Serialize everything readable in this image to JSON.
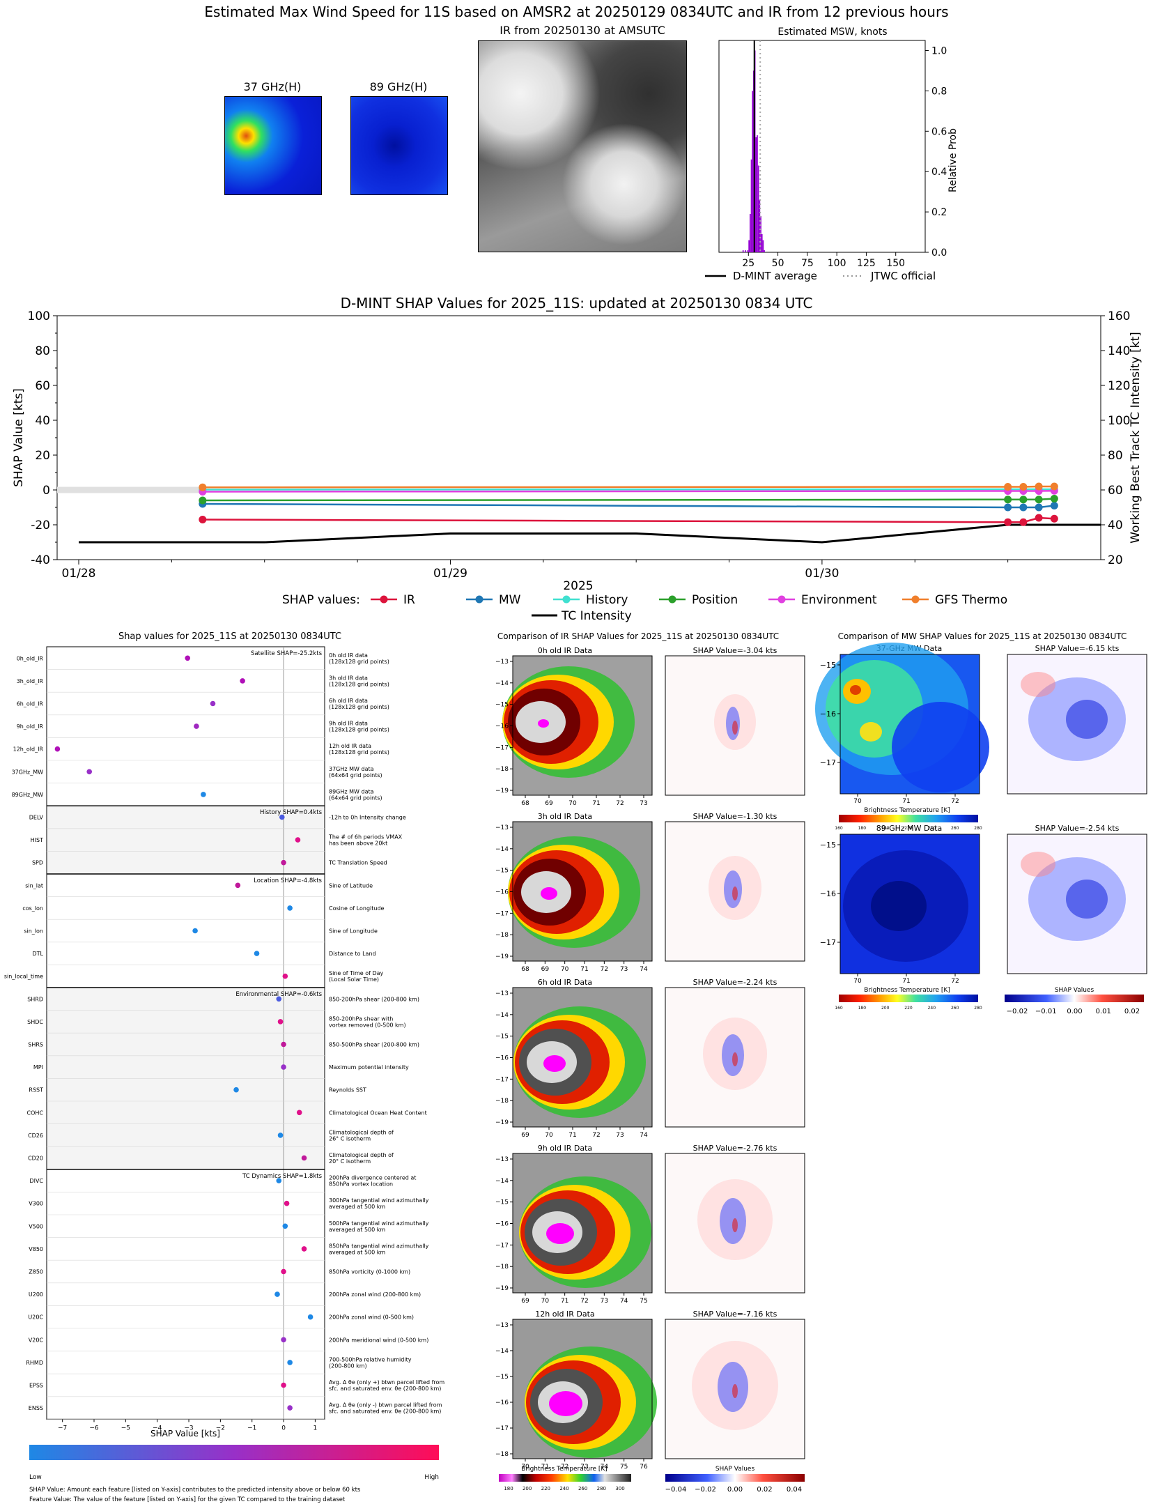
{
  "header": {
    "title": "Estimated Max Wind Speed for 11S based on AMSR2 at 20250129 0834UTC and IR from 12 previous hours",
    "mw37_title": "37 GHz(H)",
    "mw89_title": "89 GHz(H)",
    "ir_title": "IR from 20250130 at  AMSUTC",
    "hist_title": "Estimated MSW, knots",
    "hist_ylabel": "Relative Prob",
    "legend_dmint": "D-MINT average",
    "legend_jtwc": "JTWC official"
  },
  "timeseries": {
    "title": "D-MINT SHAP Values for 2025_11S: updated at 20250130 0834 UTC",
    "ylabel_left": "SHAP Value [kts]",
    "ylabel_right": "Working Best Track TC Intensity [kt]",
    "xlabel": "2025",
    "x_ticks": [
      "01/28",
      "01/29",
      "01/30"
    ],
    "legend_prefix": "SHAP values:",
    "legend_tc": "TC Intensity"
  },
  "shap_panel": {
    "title": "Shap values for 2025_11S at 20250130 0834UTC",
    "xlabel": "SHAP Value [kts]",
    "colorbar_low": "Low",
    "colorbar_high": "High",
    "footnote1": "SHAP Value: Amount each feature [listed on Y-axis] contributes to the predicted intensity above or below 60 kts",
    "footnote2": "Feature Value: The value of the feature [listed on Y-axis] for the given TC compared to the training dataset",
    "group_labels": [
      "Satellite SHAP=-25.2kts",
      "History SHAP=0.4kts",
      "Location SHAP=-4.8kts",
      "Environmental SHAP=-0.6kts",
      "TC Dynamics SHAP=1.8kts"
    ]
  },
  "ir_panel": {
    "title": "Comparison of IR SHAP Values for 2025_11S at 20250130 0834UTC",
    "rows": [
      {
        "label": "0h old IR Data",
        "shap": "SHAP Value=-3.04 kts",
        "xticks": [
          "68",
          "69",
          "70",
          "71",
          "72",
          "73"
        ],
        "yticks": [
          "-13",
          "-14",
          "-15",
          "-16",
          "-17",
          "-18",
          "-19"
        ]
      },
      {
        "label": "3h old IR Data",
        "shap": "SHAP Value=-1.30 kts",
        "xticks": [
          "68",
          "69",
          "70",
          "71",
          "72",
          "73",
          "74"
        ],
        "yticks": [
          "-13",
          "-14",
          "-15",
          "-16",
          "-17",
          "-18",
          "-19"
        ]
      },
      {
        "label": "6h old IR Data",
        "shap": "SHAP Value=-2.24 kts",
        "xticks": [
          "69",
          "70",
          "71",
          "72",
          "73",
          "74"
        ],
        "yticks": [
          "-13",
          "-14",
          "-15",
          "-16",
          "-17",
          "-18",
          "-19"
        ]
      },
      {
        "label": "9h old IR Data",
        "shap": "SHAP Value=-2.76 kts",
        "xticks": [
          "69",
          "70",
          "71",
          "72",
          "73",
          "74",
          "75"
        ],
        "yticks": [
          "-13",
          "-14",
          "-15",
          "-16",
          "-17",
          "-18",
          "-19"
        ]
      },
      {
        "label": "12h old IR Data",
        "shap": "SHAP Value=-7.16 kts",
        "xticks": [
          "70",
          "71",
          "72",
          "73",
          "74",
          "75",
          "76"
        ],
        "yticks": [
          "-13",
          "-14",
          "-15",
          "-16",
          "-17",
          "-18"
        ]
      }
    ],
    "cb_label": "Brightness Temperature [K]",
    "cb_ticks": [
      "180",
      "200",
      "220",
      "240",
      "260",
      "280",
      "300"
    ],
    "shap_cb_label": "SHAP Values",
    "shap_cb_ticks": [
      "−0.04",
      "−0.02",
      "0.00",
      "0.02",
      "0.04"
    ]
  },
  "mw_panel": {
    "title": "Comparison of MW SHAP Values for 2025_11S at 20250130 0834UTC",
    "rows": [
      {
        "label": "37-GHz MW Data",
        "shap": "SHAP Value=-6.15 kts"
      },
      {
        "label": "89-GHz MW Data",
        "shap": "SHAP Value=-2.54 kts"
      }
    ],
    "xticks": [
      "70",
      "71",
      "72"
    ],
    "yticks": [
      "-15",
      "-16",
      "-17"
    ],
    "cb_label": "Brightness Temperature [K]",
    "cb_ticks": [
      "160",
      "180",
      "200",
      "220",
      "240",
      "260",
      "280"
    ],
    "shap_cb_label": "SHAP Values",
    "shap_cb_ticks": [
      "−0.02",
      "−0.01",
      "0.00",
      "0.01",
      "0.02"
    ]
  },
  "chart_data": [
    {
      "type": "bar",
      "title": "Estimated MSW, knots",
      "ylabel": "Relative Prob",
      "xlim": [
        0,
        175
      ],
      "ylim": [
        0,
        1.05
      ],
      "x_ticks": [
        25,
        50,
        75,
        100,
        125,
        150
      ],
      "y_ticks": [
        0.0,
        0.2,
        0.4,
        0.6,
        0.8,
        1.0
      ],
      "bins": [
        20,
        22,
        24,
        25,
        26,
        27,
        28,
        29,
        30,
        31,
        32,
        33,
        34,
        35,
        36,
        37,
        38
      ],
      "values": [
        0.01,
        0.01,
        0.01,
        0.06,
        0.19,
        0.46,
        0.8,
        0.9,
        1.0,
        0.57,
        0.58,
        0.43,
        0.26,
        0.18,
        0.09,
        0.06,
        0.01
      ],
      "dmint_average": 30,
      "jtwc_official": 35,
      "legend": [
        "D-MINT average",
        "JTWC official"
      ]
    },
    {
      "type": "line",
      "title": "D-MINT SHAP Values for 2025_11S: updated at 20250130 0834 UTC",
      "xlabel": "2025",
      "ylabel": "SHAP Value [kts]",
      "ylabel_right": "Working Best Track TC Intensity [kt]",
      "ylim": [
        -40,
        100
      ],
      "ylim_right": [
        20,
        160
      ],
      "x_range": [
        "01/28 00",
        "01/30 18"
      ],
      "x_ticks": [
        "01/28",
        "01/29",
        "01/30"
      ],
      "x_hours": [
        8,
        60,
        61,
        62,
        63
      ],
      "series": [
        {
          "name": "IR",
          "color": "#dc143c",
          "values": [
            -17,
            -18.5,
            -18.5,
            -16,
            -16.5
          ]
        },
        {
          "name": "MW",
          "color": "#1f77b4",
          "values": [
            -8,
            -10,
            -10,
            -10,
            -9
          ]
        },
        {
          "name": "History",
          "color": "#40e0d0",
          "values": [
            0.2,
            0.4,
            0.4,
            0.4,
            0.4
          ]
        },
        {
          "name": "Position",
          "color": "#2ca02c",
          "values": [
            -6,
            -5.5,
            -5.5,
            -5.5,
            -5
          ]
        },
        {
          "name": "Environment",
          "color": "#e040e0",
          "values": [
            -1,
            -0.6,
            -0.6,
            -0.6,
            -0.5
          ]
        },
        {
          "name": "GFS Thermo",
          "color": "#f07f2c",
          "values": [
            1.5,
            1.8,
            1.8,
            2,
            2
          ]
        }
      ],
      "tc_intensity": {
        "name": "TC Intensity",
        "x_hours": [
          0,
          12,
          24,
          36,
          48,
          60,
          66
        ],
        "values": [
          30,
          30,
          35,
          35,
          30,
          40,
          40
        ]
      }
    },
    {
      "type": "scatter",
      "title": "Shap values for 2025_11S at 20250130 0834UTC",
      "xlabel": "SHAP Value [kts]",
      "xlim": [
        -7.5,
        1.3
      ],
      "x_ticks": [
        -7,
        -6,
        -5,
        -4,
        -3,
        -2,
        -1,
        0,
        1
      ],
      "features": [
        {
          "name": "0h_old_IR",
          "desc": "0h old IR data\n(128x128 grid points)",
          "shap": -3.04,
          "color": "#b010b8"
        },
        {
          "name": "3h_old_IR",
          "desc": "3h old IR data\n(128x128 grid points)",
          "shap": -1.3,
          "color": "#b010b8"
        },
        {
          "name": "6h_old_IR",
          "desc": "6h old IR data\n(128x128 grid points)",
          "shap": -2.24,
          "color": "#9830c8"
        },
        {
          "name": "9h_old_IR",
          "desc": "9h old IR data\n(128x128 grid points)",
          "shap": -2.76,
          "color": "#a028c0"
        },
        {
          "name": "12h_old_IR",
          "desc": "12h old IR data\n(128x128 grid points)",
          "shap": -7.16,
          "color": "#b010b8"
        },
        {
          "name": "37GHz_MW",
          "desc": "37GHz MW data\n(64x64 grid points)",
          "shap": -6.15,
          "color": "#9830c8"
        },
        {
          "name": "89GHz_MW",
          "desc": "89GHz MW data\n(64x64 grid points)",
          "shap": -2.54,
          "color": "#1e88e5"
        },
        {
          "name": "DELV",
          "desc": "-12h to 0h Intensity change",
          "shap": -0.05,
          "color": "#4a5ae0"
        },
        {
          "name": "HIST",
          "desc": "The # of 6h periods VMAX\nhas been above 20kt",
          "shap": 0.45,
          "color": "#e0108a"
        },
        {
          "name": "SPD",
          "desc": "TC Translation Speed",
          "shap": 0.0,
          "color": "#c0189a"
        },
        {
          "name": "sin_lat",
          "desc": "Sine of Latitude",
          "shap": -1.45,
          "color": "#c0189a"
        },
        {
          "name": "cos_lon",
          "desc": "Cosine of Longitude",
          "shap": 0.2,
          "color": "#1e88e5"
        },
        {
          "name": "sin_lon",
          "desc": "Sine of Longitude",
          "shap": -2.8,
          "color": "#1e88e5"
        },
        {
          "name": "DTL",
          "desc": "Distance to Land",
          "shap": -0.85,
          "color": "#1e88e5"
        },
        {
          "name": "sin_local_time",
          "desc": "Sine of Time of Day\n(Local Solar Time)",
          "shap": 0.05,
          "color": "#e0108a"
        },
        {
          "name": "SHRD",
          "desc": "850-200hPa shear (200-800 km)",
          "shap": -0.15,
          "color": "#4a5ae0"
        },
        {
          "name": "SHDC",
          "desc": "850-200hPa shear with\nvortex removed (0-500 km)",
          "shap": -0.1,
          "color": "#e0108a"
        },
        {
          "name": "SHRS",
          "desc": "850-500hPa shear (200-800 km)",
          "shap": 0.0,
          "color": "#c0189a"
        },
        {
          "name": "MPI",
          "desc": "Maximum potential intensity",
          "shap": 0.0,
          "color": "#9830c8"
        },
        {
          "name": "RSST",
          "desc": "Reynolds SST",
          "shap": -1.5,
          "color": "#1e88e5"
        },
        {
          "name": "COHC",
          "desc": "Climatological Ocean Heat Content",
          "shap": 0.5,
          "color": "#e0108a"
        },
        {
          "name": "CD26",
          "desc": "Climatological depth of\n26° C isotherm",
          "shap": -0.1,
          "color": "#1e88e5"
        },
        {
          "name": "CD20",
          "desc": "Climatological depth of\n20° C isotherm",
          "shap": 0.65,
          "color": "#c0189a"
        },
        {
          "name": "DIVC",
          "desc": "200hPa divergence centered at\n850hPa vortex location",
          "shap": -0.15,
          "color": "#1e88e5"
        },
        {
          "name": "V300",
          "desc": "300hPa tangential wind azimuthally\naveraged at 500 km",
          "shap": 0.1,
          "color": "#e0108a"
        },
        {
          "name": "V500",
          "desc": "500hPa tangential wind azimuthally\naveraged at 500 km",
          "shap": 0.05,
          "color": "#1e88e5"
        },
        {
          "name": "V850",
          "desc": "850hPa tangential wind azimuthally\naveraged at 500 km",
          "shap": 0.65,
          "color": "#e0108a"
        },
        {
          "name": "Z850",
          "desc": "850hPa vorticity (0-1000 km)",
          "shap": 0.0,
          "color": "#e0108a"
        },
        {
          "name": "U200",
          "desc": "200hPa zonal wind (200-800 km)",
          "shap": -0.2,
          "color": "#1e88e5"
        },
        {
          "name": "U20C",
          "desc": "200hPa zonal wind (0-500 km)",
          "shap": 0.85,
          "color": "#1e88e5"
        },
        {
          "name": "V20C",
          "desc": "200hPa meridional wind (0-500 km)",
          "shap": 0.0,
          "color": "#9830c8"
        },
        {
          "name": "RHMD",
          "desc": "700-500hPa relative humidity\n(200-800 km)",
          "shap": 0.2,
          "color": "#1e88e5"
        },
        {
          "name": "EPSS",
          "desc": "Avg. Δ θe (only +) btwn parcel lifted from\nsfc. and saturated env. θe (200-800 km)",
          "shap": 0.0,
          "color": "#e0108a"
        },
        {
          "name": "ENSS",
          "desc": "Avg. Δ θe (only -) btwn parcel lifted from\nsfc. and saturated env. θe (200-800 km)",
          "shap": 0.2,
          "color": "#9830c8"
        }
      ]
    }
  ]
}
